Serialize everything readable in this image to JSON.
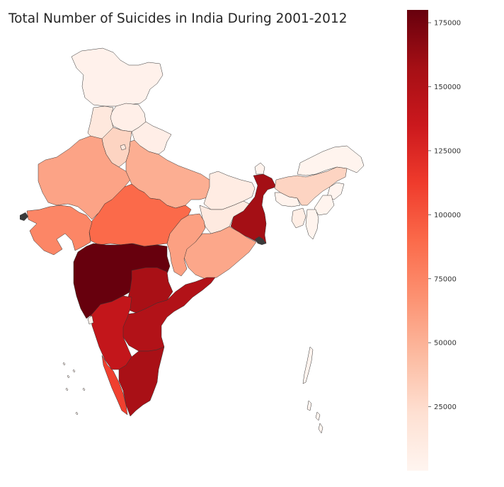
{
  "title": "Total Number of Suicides in India During 2001-2012",
  "colorbar": {
    "colormap": "Reds",
    "min": 0,
    "max": 180000,
    "ticks": [
      {
        "value": 25000,
        "label": "25000"
      },
      {
        "value": 50000,
        "label": "50000"
      },
      {
        "value": 75000,
        "label": "75000"
      },
      {
        "value": 100000,
        "label": "100000"
      },
      {
        "value": 125000,
        "label": "125000"
      },
      {
        "value": 150000,
        "label": "150000"
      },
      {
        "value": 175000,
        "label": "175000"
      }
    ],
    "stops": [
      "#fff5f0",
      "#fee0d2",
      "#fcbba1",
      "#fc9272",
      "#fb6a4a",
      "#ef3b2c",
      "#cb181d",
      "#a50f15",
      "#67000d"
    ]
  },
  "chart_data": {
    "type": "choropleth",
    "title": "Total Number of Suicides in India During 2001-2012",
    "legend": "right",
    "grid": false,
    "regions": [
      {
        "id": "jk",
        "value": 4000
      },
      {
        "id": "hp",
        "value": 6000
      },
      {
        "id": "pb",
        "value": 14000
      },
      {
        "id": "uk",
        "value": 7000
      },
      {
        "id": "hr",
        "value": 30000
      },
      {
        "id": "dl",
        "value": 15000
      },
      {
        "id": "rj",
        "value": 58000
      },
      {
        "id": "up",
        "value": 52000
      },
      {
        "id": "bh",
        "value": 10000
      },
      {
        "id": "sk",
        "value": 2000
      },
      {
        "id": "arp",
        "value": 1500
      },
      {
        "id": "as",
        "value": 30000
      },
      {
        "id": "ml",
        "value": 2500
      },
      {
        "id": "nl",
        "value": 1000
      },
      {
        "id": "mn",
        "value": 1500
      },
      {
        "id": "mz",
        "value": 1500
      },
      {
        "id": "tr",
        "value": 8000
      },
      {
        "id": "wb",
        "value": 158000
      },
      {
        "id": "jh",
        "value": 12000
      },
      {
        "id": "od",
        "value": 56000
      },
      {
        "id": "cg",
        "value": 60000
      },
      {
        "id": "mp",
        "value": 90000
      },
      {
        "id": "gj",
        "value": 74000
      },
      {
        "id": "mh",
        "value": 180000
      },
      {
        "id": "tg",
        "value": 155000
      },
      {
        "id": "ap",
        "value": 150000
      },
      {
        "id": "ka",
        "value": 140000
      },
      {
        "id": "kl",
        "value": 110000
      },
      {
        "id": "tn",
        "value": 155000
      },
      {
        "id": "goa",
        "value": 3000
      },
      {
        "id": "an",
        "value": 1000
      },
      {
        "id": "ld",
        "value": 100
      }
    ]
  }
}
